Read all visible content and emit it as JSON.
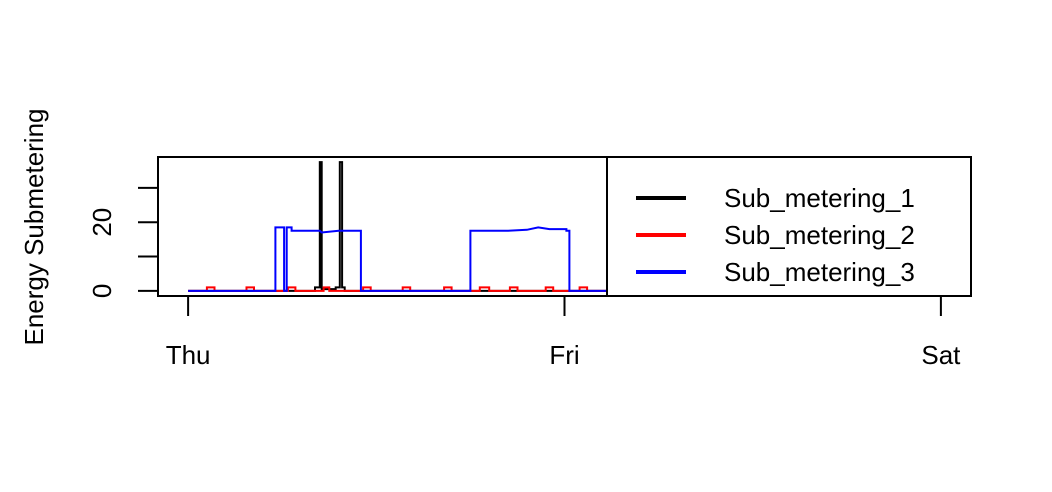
{
  "chart_data": {
    "type": "line",
    "title": "",
    "xlabel": "",
    "ylabel": "Energy Submetering",
    "x_ticks": [
      {
        "label": "Thu",
        "value": 0
      },
      {
        "label": "Fri",
        "value": 1
      },
      {
        "label": "Sat",
        "value": 2
      }
    ],
    "y_ticks": [
      {
        "label": "0",
        "value": 0
      },
      {
        "label": "20",
        "value": 20
      }
    ],
    "y_minor_ticks": [
      0,
      10,
      20,
      30
    ],
    "xlim": [
      -0.08,
      2.08
    ],
    "ylim": [
      -1.5,
      39
    ],
    "x_unit": "days",
    "legend_position": "top-right",
    "series": [
      {
        "name": "Sub_metering_1",
        "color": "#000000",
        "points": [
          [
            0,
            0
          ],
          [
            0.337,
            0
          ],
          [
            0.337,
            1
          ],
          [
            0.35,
            1
          ],
          [
            0.35,
            37.5
          ],
          [
            0.355,
            37.5
          ],
          [
            0.355,
            0.5
          ],
          [
            0.392,
            0.5
          ],
          [
            0.392,
            1
          ],
          [
            0.403,
            1
          ],
          [
            0.403,
            37.5
          ],
          [
            0.409,
            37.5
          ],
          [
            0.409,
            1
          ],
          [
            0.416,
            1
          ],
          [
            0.416,
            0
          ],
          [
            1.12,
            0
          ]
        ]
      },
      {
        "name": "Sub_metering_2",
        "color": "#ff0000",
        "points": [
          [
            0,
            0
          ],
          [
            0.05,
            0
          ],
          [
            0.05,
            1
          ],
          [
            0.07,
            1
          ],
          [
            0.07,
            0
          ],
          [
            0.155,
            0
          ],
          [
            0.155,
            1
          ],
          [
            0.175,
            1
          ],
          [
            0.175,
            0
          ],
          [
            0.265,
            0
          ],
          [
            0.265,
            1
          ],
          [
            0.285,
            1
          ],
          [
            0.285,
            0
          ],
          [
            0.36,
            0
          ],
          [
            0.36,
            1
          ],
          [
            0.375,
            1
          ],
          [
            0.375,
            0
          ],
          [
            0.465,
            0
          ],
          [
            0.465,
            1
          ],
          [
            0.485,
            1
          ],
          [
            0.485,
            0
          ],
          [
            0.57,
            0
          ],
          [
            0.57,
            1
          ],
          [
            0.59,
            1
          ],
          [
            0.59,
            0
          ],
          [
            0.68,
            0
          ],
          [
            0.68,
            1
          ],
          [
            0.7,
            1
          ],
          [
            0.7,
            0
          ],
          [
            0.775,
            0
          ],
          [
            0.775,
            1
          ],
          [
            0.8,
            1
          ],
          [
            0.8,
            0
          ],
          [
            0.855,
            0
          ],
          [
            0.855,
            1
          ],
          [
            0.875,
            1
          ],
          [
            0.875,
            0
          ],
          [
            0.95,
            0
          ],
          [
            0.95,
            1
          ],
          [
            0.97,
            1
          ],
          [
            0.97,
            0
          ],
          [
            1.04,
            0
          ],
          [
            1.04,
            1
          ],
          [
            1.06,
            1
          ],
          [
            1.06,
            0
          ],
          [
            1.12,
            0
          ]
        ]
      },
      {
        "name": "Sub_metering_3",
        "color": "#0000ff",
        "points": [
          [
            0,
            0
          ],
          [
            0.232,
            0
          ],
          [
            0.232,
            18.5
          ],
          [
            0.255,
            18.5
          ],
          [
            0.255,
            0
          ],
          [
            0.262,
            0
          ],
          [
            0.262,
            18.5
          ],
          [
            0.275,
            18.5
          ],
          [
            0.275,
            17.5
          ],
          [
            0.35,
            17.5
          ],
          [
            0.355,
            17
          ],
          [
            0.4,
            17.5
          ],
          [
            0.45,
            17.5
          ],
          [
            0.459,
            17.5
          ],
          [
            0.459,
            0
          ],
          [
            0.75,
            0
          ],
          [
            0.75,
            17.5
          ],
          [
            0.8,
            17.5
          ],
          [
            0.85,
            17.5
          ],
          [
            0.9,
            17.8
          ],
          [
            0.93,
            18.5
          ],
          [
            0.96,
            18
          ],
          [
            1.005,
            18
          ],
          [
            1.005,
            17.5
          ],
          [
            1.013,
            17.5
          ],
          [
            1.013,
            0
          ],
          [
            1.12,
            0
          ]
        ]
      }
    ]
  }
}
